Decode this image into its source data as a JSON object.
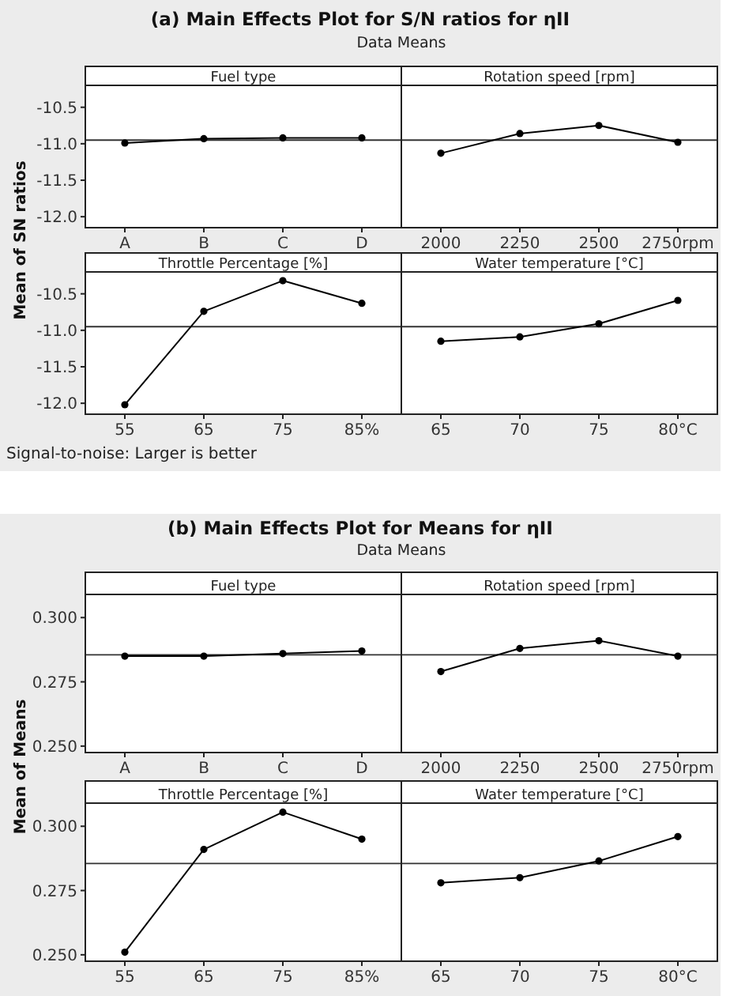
{
  "chart_data": [
    {
      "type": "line",
      "title": "(a) Main Effects Plot for S/N ratios for ηII",
      "subtitle": "Data Means",
      "ylabel": "Mean of SN ratios",
      "xlabel": "Fuel type",
      "categories": [
        "A",
        "B",
        "C",
        "D"
      ],
      "series": [
        {
          "color": "#000000",
          "values": [
            -10.99,
            -10.93,
            -10.92,
            -10.92
          ]
        }
      ],
      "ylim": [
        -12.15,
        -10.2
      ],
      "yticks": [
        {
          "value": -10.5,
          "label": "-10.5"
        },
        {
          "value": -11,
          "label": "-11.0"
        },
        {
          "value": -11.5,
          "label": "-11.5"
        },
        {
          "value": -12,
          "label": "-12.0"
        }
      ],
      "ref_lines": [
        {
          "axis": "y",
          "value": -10.95
        }
      ],
      "marker": "circle",
      "line_style": "solid"
    },
    {
      "type": "line",
      "xlabel": "Rotation speed [rpm]",
      "categories": [
        "2000",
        "2250",
        "2500",
        "2750rpm"
      ],
      "series": [
        {
          "color": "#000000",
          "values": [
            -11.13,
            -10.86,
            -10.75,
            -10.98
          ]
        }
      ],
      "ylim": [
        -12.15,
        -10.2
      ],
      "ref_lines": [
        {
          "axis": "y",
          "value": -10.95
        }
      ],
      "marker": "circle",
      "line_style": "solid",
      "tick_labels": "x"
    },
    {
      "type": "line",
      "xlabel": "Throttle Percentage [%]",
      "categories": [
        "55",
        "65",
        "75",
        "85%"
      ],
      "series": [
        {
          "color": "#000000",
          "values": [
            -12.02,
            -10.74,
            -10.32,
            -10.63
          ]
        }
      ],
      "ylim": [
        -12.15,
        -10.2
      ],
      "yticks": [
        {
          "value": -10.5,
          "label": "-10.5"
        },
        {
          "value": -11,
          "label": "-11.0"
        },
        {
          "value": -11.5,
          "label": "-11.5"
        },
        {
          "value": -12,
          "label": "-12.0"
        }
      ],
      "ref_lines": [
        {
          "axis": "y",
          "value": -10.95
        }
      ],
      "marker": "circle",
      "line_style": "solid",
      "annotations": [
        "Signal-to-noise: Larger is better"
      ]
    },
    {
      "type": "line",
      "xlabel": "Water temperature [°C]",
      "categories": [
        "65",
        "70",
        "75",
        "80°C"
      ],
      "series": [
        {
          "color": "#000000",
          "values": [
            -11.15,
            -11.09,
            -10.91,
            -10.59
          ]
        }
      ],
      "ylim": [
        -12.15,
        -10.2
      ],
      "ref_lines": [
        {
          "axis": "y",
          "value": -10.95
        }
      ],
      "marker": "circle",
      "line_style": "solid",
      "tick_labels": "x"
    },
    {
      "type": "line",
      "title": "(b) Main Effects Plot for Means for ηII",
      "subtitle": "Data Means",
      "ylabel": "Mean of Means",
      "xlabel": "Fuel type",
      "categories": [
        "A",
        "B",
        "C",
        "D"
      ],
      "series": [
        {
          "color": "#000000",
          "values": [
            0.285,
            0.285,
            0.286,
            0.287
          ]
        }
      ],
      "ylim": [
        0.2475,
        0.309
      ],
      "yticks": [
        {
          "value": 0.3,
          "label": "0.300"
        },
        {
          "value": 0.275,
          "label": "0.275"
        },
        {
          "value": 0.25,
          "label": "0.250"
        }
      ],
      "ref_lines": [
        {
          "axis": "y",
          "value": 0.2855
        }
      ],
      "marker": "circle",
      "line_style": "solid"
    },
    {
      "type": "line",
      "xlabel": "Rotation speed [rpm]",
      "categories": [
        "2000",
        "2250",
        "2500",
        "2750rpm"
      ],
      "series": [
        {
          "color": "#000000",
          "values": [
            0.279,
            0.288,
            0.291,
            0.285
          ]
        }
      ],
      "ylim": [
        0.2475,
        0.309
      ],
      "ref_lines": [
        {
          "axis": "y",
          "value": 0.2855
        }
      ],
      "marker": "circle",
      "line_style": "solid",
      "tick_labels": "x"
    },
    {
      "type": "line",
      "xlabel": "Throttle Percentage [%]",
      "categories": [
        "55",
        "65",
        "75",
        "85%"
      ],
      "series": [
        {
          "color": "#000000",
          "values": [
            0.251,
            0.291,
            0.3055,
            0.295
          ]
        }
      ],
      "ylim": [
        0.2475,
        0.309
      ],
      "yticks": [
        {
          "value": 0.3,
          "label": "0.300"
        },
        {
          "value": 0.275,
          "label": "0.275"
        },
        {
          "value": 0.25,
          "label": "0.250"
        }
      ],
      "ref_lines": [
        {
          "axis": "y",
          "value": 0.2855
        }
      ],
      "marker": "circle",
      "line_style": "solid"
    },
    {
      "type": "line",
      "xlabel": "Water temperature [°C]",
      "categories": [
        "65",
        "70",
        "75",
        "80°C"
      ],
      "series": [
        {
          "color": "#000000",
          "values": [
            0.278,
            0.28,
            0.2865,
            0.296
          ]
        }
      ],
      "ylim": [
        0.2475,
        0.309
      ],
      "ref_lines": [
        {
          "axis": "y",
          "value": 0.2855
        }
      ],
      "marker": "circle",
      "line_style": "solid",
      "tick_labels": "x"
    }
  ]
}
